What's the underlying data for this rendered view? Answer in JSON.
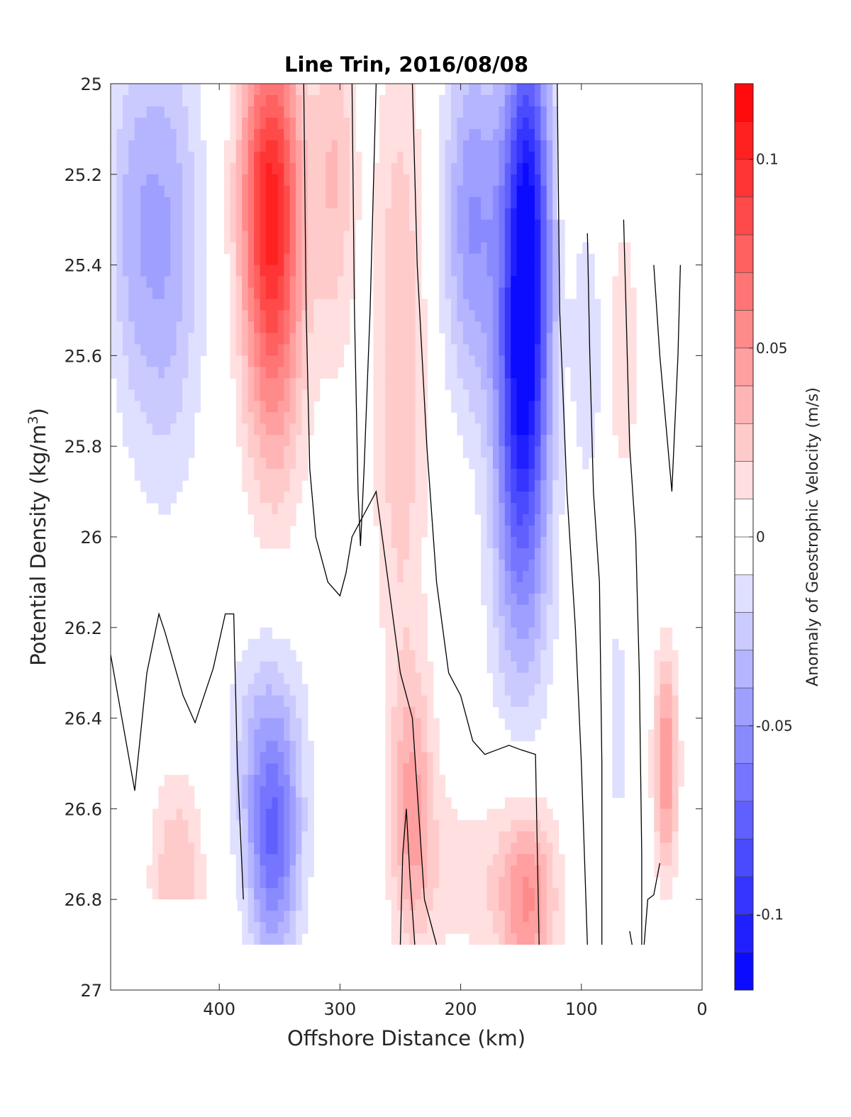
{
  "chart_data": {
    "type": "heatmap",
    "title": "Line Trin, 2016/08/08",
    "xlabel": "Offshore Distance (km)",
    "ylabel_main": "Potential Density (kg/m",
    "ylabel_sup": "3",
    "ylabel_close": ")",
    "colorbar_label": "Anomaly of Geostrophic Velocity (m/s)",
    "xlim": [
      490,
      0
    ],
    "ylim": [
      25,
      27
    ],
    "x_reversed": true,
    "y_reversed": true,
    "grid": false,
    "xticks": [
      400,
      300,
      200,
      100,
      0
    ],
    "xtick_labels": [
      "400",
      "300",
      "200",
      "100",
      "0"
    ],
    "yticks": [
      25,
      25.2,
      25.4,
      25.6,
      25.8,
      26,
      26.2,
      26.4,
      26.6,
      26.8,
      27
    ],
    "ytick_labels": [
      "25",
      "25.2",
      "25.4",
      "25.6",
      "25.8",
      "26",
      "26.2",
      "26.4",
      "26.6",
      "26.8",
      "27"
    ],
    "colorbar": {
      "range": [
        -0.12,
        0.12
      ],
      "ticks": [
        0.1,
        0.05,
        0,
        -0.05,
        -0.1
      ],
      "tick_labels": [
        "0.1",
        "0.05",
        "0",
        "-0.05",
        "-0.1"
      ],
      "levels": [
        -0.12,
        -0.11,
        -0.1,
        -0.09,
        -0.08,
        -0.07,
        -0.06,
        -0.05,
        -0.04,
        -0.03,
        -0.02,
        -0.01,
        0,
        0.01,
        0.02,
        0.03,
        0.04,
        0.05,
        0.06,
        0.07,
        0.08,
        0.09,
        0.1,
        0.11,
        0.12
      ],
      "colormap": "blue-white-red",
      "negative_color": "#0000ff",
      "positive_color": "#ff0000",
      "zero_color": "#ffffff"
    },
    "data_extent": {
      "x": [
        490,
        15
      ],
      "y": [
        25,
        26.9
      ]
    },
    "features": [
      {
        "x": 445,
        "y": 25.35,
        "value": -0.04,
        "radius_x": 30,
        "radius_y": 0.5
      },
      {
        "x": 475,
        "y": 25.3,
        "value": -0.02,
        "radius_x": 20,
        "radius_y": 0.4
      },
      {
        "x": 358,
        "y": 25.2,
        "value": 0.08,
        "radius_x": 25,
        "radius_y": 0.35
      },
      {
        "x": 355,
        "y": 25.55,
        "value": 0.05,
        "radius_x": 25,
        "radius_y": 0.4
      },
      {
        "x": 305,
        "y": 25.2,
        "value": 0.03,
        "radius_x": 18,
        "radius_y": 0.4
      },
      {
        "x": 250,
        "y": 25.6,
        "value": 0.03,
        "radius_x": 22,
        "radius_y": 0.7
      },
      {
        "x": 240,
        "y": 26.6,
        "value": 0.04,
        "radius_x": 18,
        "radius_y": 0.3
      },
      {
        "x": 145,
        "y": 25.3,
        "value": -0.11,
        "radius_x": 20,
        "radius_y": 0.45
      },
      {
        "x": 150,
        "y": 25.75,
        "value": -0.07,
        "radius_x": 22,
        "radius_y": 0.35
      },
      {
        "x": 190,
        "y": 25.3,
        "value": -0.05,
        "radius_x": 25,
        "radius_y": 0.4
      },
      {
        "x": 150,
        "y": 26.15,
        "value": -0.03,
        "radius_x": 25,
        "radius_y": 0.3
      },
      {
        "x": 355,
        "y": 26.7,
        "value": -0.06,
        "radius_x": 22,
        "radius_y": 0.25
      },
      {
        "x": 360,
        "y": 26.45,
        "value": -0.03,
        "radius_x": 30,
        "radius_y": 0.25
      },
      {
        "x": 435,
        "y": 26.75,
        "value": 0.03,
        "radius_x": 22,
        "radius_y": 0.22
      },
      {
        "x": 145,
        "y": 26.8,
        "value": 0.05,
        "radius_x": 25,
        "radius_y": 0.2
      },
      {
        "x": 200,
        "y": 26.75,
        "value": 0.015,
        "radius_x": 40,
        "radius_y": 0.2
      },
      {
        "x": 30,
        "y": 26.5,
        "value": 0.05,
        "radius_x": 10,
        "radius_y": 0.25
      },
      {
        "x": 65,
        "y": 25.6,
        "value": 0.02,
        "radius_x": 12,
        "radius_y": 0.3
      },
      {
        "x": 95,
        "y": 25.6,
        "value": -0.02,
        "radius_x": 12,
        "radius_y": 0.3
      },
      {
        "x": 70,
        "y": 26.4,
        "value": -0.015,
        "radius_x": 10,
        "radius_y": 0.3
      }
    ],
    "masked_regions": [
      {
        "x_from": 120,
        "x_to": 0,
        "y_from": 25,
        "y_to": 25.3
      },
      {
        "x_from": 50,
        "x_to": 0,
        "y_from": 25,
        "y_to": 25.4
      },
      {
        "x_from": 490,
        "x_to": 385,
        "y_from": 26.8,
        "y_to": 26.9
      },
      {
        "x_from": 490,
        "x_to": 0,
        "y_from": 26.9,
        "y_to": 27
      },
      {
        "x_from": 28,
        "x_to": 0,
        "y_from": 26.8,
        "y_to": 26.9
      }
    ],
    "zero_contours": [
      [
        [
          490,
          26.26
        ],
        [
          470,
          26.56
        ],
        [
          460,
          26.3
        ],
        [
          450,
          26.17
        ],
        [
          445,
          26.21
        ],
        [
          430,
          26.35
        ],
        [
          420,
          26.41
        ],
        [
          405,
          26.29
        ],
        [
          395,
          26.17
        ],
        [
          388,
          26.17
        ],
        [
          385,
          26.5
        ],
        [
          380,
          26.8
        ]
      ],
      [
        [
          330,
          25.0
        ],
        [
          328,
          25.5
        ],
        [
          325,
          25.85
        ],
        [
          320,
          26.0
        ],
        [
          310,
          26.1
        ],
        [
          300,
          26.13
        ],
        [
          295,
          26.08
        ],
        [
          290,
          26.0
        ],
        [
          280,
          25.95
        ],
        [
          270,
          25.9
        ],
        [
          260,
          26.1
        ],
        [
          250,
          26.3
        ],
        [
          240,
          26.4
        ],
        [
          230,
          26.8
        ],
        [
          220,
          26.9
        ]
      ],
      [
        [
          290,
          25.0
        ],
        [
          288,
          25.5
        ],
        [
          285,
          25.9
        ],
        [
          283,
          26.02
        ],
        [
          280,
          25.85
        ],
        [
          275,
          25.5
        ],
        [
          270,
          25.0
        ]
      ],
      [
        [
          250,
          26.9
        ],
        [
          248,
          26.7
        ],
        [
          245,
          26.6
        ],
        [
          242,
          26.75
        ],
        [
          238,
          26.9
        ]
      ],
      [
        [
          240,
          25.0
        ],
        [
          236,
          25.4
        ],
        [
          228,
          25.8
        ],
        [
          220,
          26.1
        ],
        [
          210,
          26.3
        ],
        [
          200,
          26.35
        ],
        [
          190,
          26.45
        ],
        [
          180,
          26.48
        ],
        [
          170,
          26.47
        ],
        [
          160,
          26.46
        ],
        [
          150,
          26.47
        ],
        [
          138,
          26.48
        ],
        [
          135,
          26.9
        ]
      ],
      [
        [
          120,
          25.0
        ],
        [
          118,
          25.5
        ],
        [
          112,
          25.9
        ],
        [
          105,
          26.2
        ],
        [
          100,
          26.5
        ],
        [
          95,
          26.9
        ]
      ],
      [
        [
          95,
          25.33
        ],
        [
          93,
          25.6
        ],
        [
          90,
          25.9
        ],
        [
          85,
          26.1
        ],
        [
          83,
          26.5
        ],
        [
          83,
          26.9
        ]
      ],
      [
        [
          65,
          25.3
        ],
        [
          60,
          25.8
        ],
        [
          55,
          26.0
        ],
        [
          52,
          26.3
        ],
        [
          50,
          26.7
        ],
        [
          50,
          26.9
        ]
      ],
      [
        [
          40,
          25.4
        ],
        [
          35,
          25.6
        ],
        [
          25,
          25.9
        ],
        [
          20,
          25.6
        ],
        [
          18,
          25.4
        ]
      ],
      [
        [
          35,
          26.72
        ],
        [
          40,
          26.79
        ],
        [
          45,
          26.8
        ],
        [
          48,
          26.9
        ]
      ],
      [
        [
          60,
          26.87
        ],
        [
          58,
          26.9
        ]
      ]
    ]
  }
}
